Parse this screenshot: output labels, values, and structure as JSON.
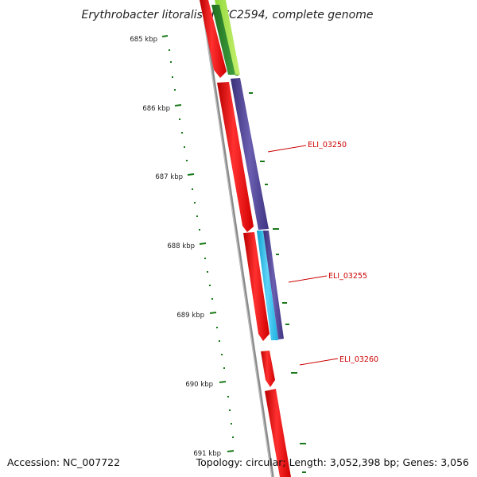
{
  "title": "Erythrobacter litoralis HTCC2594, complete genome",
  "footer": {
    "accession": "Accession: NC_007722",
    "summary": "Topology: circular; Length: 3,052,398 bp; Genes: 3,056"
  },
  "colors": {
    "background": "#ffffff",
    "backbone": "#8a8a8a",
    "tick_marks": "#1a7a1a",
    "gene_label": "#cc0000",
    "gene_red": "#ff0000",
    "gene_purple": "#4a3f8f",
    "gene_cyan": "#1ab8e8",
    "gene_dark_green": "#2f8a2f",
    "gene_light_green": "#a8e84a"
  },
  "scale_ticks": [
    {
      "kbp": 685,
      "label": "685 kbp"
    },
    {
      "kbp": 686,
      "label": "686 kbp"
    },
    {
      "kbp": 687,
      "label": "687 kbp"
    },
    {
      "kbp": 688,
      "label": "688 kbp"
    },
    {
      "kbp": 689,
      "label": "689 kbp"
    },
    {
      "kbp": 690,
      "label": "690 kbp"
    },
    {
      "kbp": 691,
      "label": "691 kbp"
    }
  ],
  "gene_labels": [
    {
      "name": "ELI_03250"
    },
    {
      "name": "ELI_03255"
    },
    {
      "name": "ELI_03260"
    }
  ]
}
